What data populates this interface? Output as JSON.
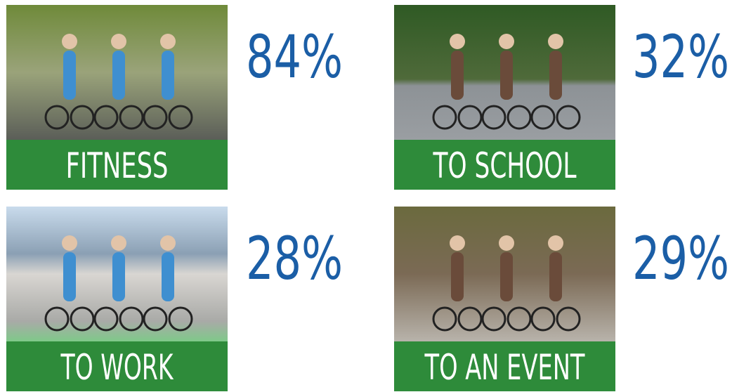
{
  "items": [
    {
      "label": "FITNESS",
      "value": "84%"
    },
    {
      "label": "TO SCHOOL",
      "value": "32%"
    },
    {
      "label": "TO WORK",
      "value": "28%"
    },
    {
      "label": "TO AN EVENT",
      "value": "29%"
    }
  ]
}
